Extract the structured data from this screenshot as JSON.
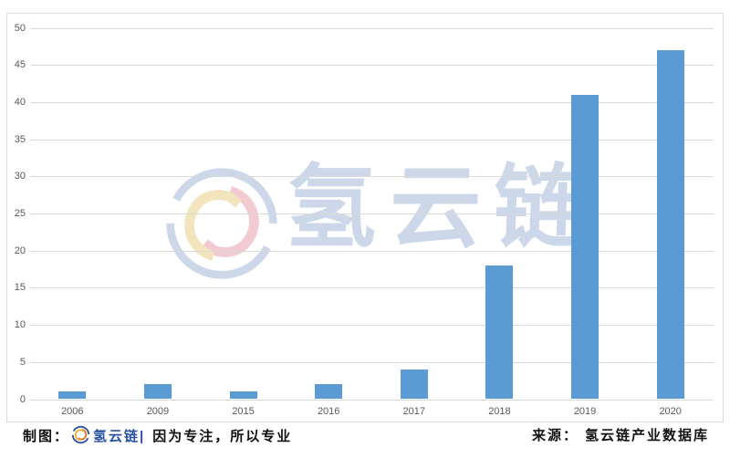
{
  "chart_data": {
    "type": "bar",
    "title": "",
    "categories": [
      "2006",
      "2009",
      "2015",
      "2016",
      "2017",
      "2018",
      "2019",
      "2020"
    ],
    "values": [
      1,
      2,
      1,
      2,
      4,
      18,
      41,
      47
    ],
    "xlabel": "",
    "ylabel": "",
    "ylim": [
      0,
      50
    ],
    "yticks": [
      0,
      5,
      10,
      15,
      20,
      25,
      30,
      35,
      40,
      45,
      50
    ],
    "grid": true,
    "legend": false,
    "bar_color": "#5b9bd5",
    "gridline_color": "#d9d9d9",
    "tick_label_color": "#595959",
    "frame_border_color": "#dadada"
  },
  "watermark": {
    "brand_text": "氢云链",
    "logo_icon": "hydrogen-cloud-chain-logo",
    "color": "#ccd7ea"
  },
  "footer": {
    "credit_label": "制图：",
    "brand_name": "氢云链",
    "separator": "|",
    "slogan": "因为专注，所以专业",
    "source_label": "来源：",
    "source_name": "氢云链产业数据库",
    "brand_color": "#2a52a2",
    "text_color": "#111111"
  }
}
